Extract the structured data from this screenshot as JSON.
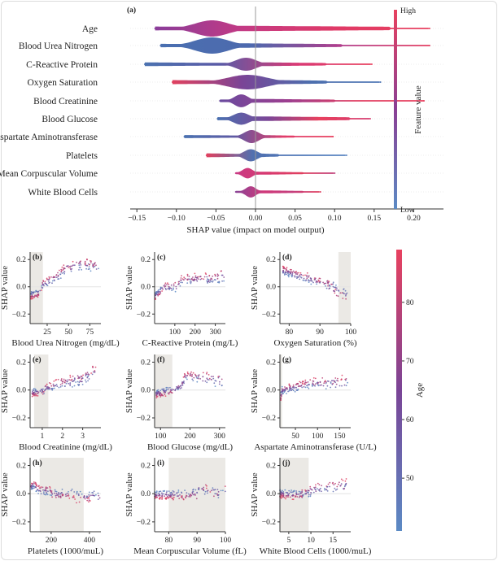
{
  "chart_data": [
    {
      "type": "violin-summary",
      "panel_label": "(a)",
      "xlabel": "SHAP value (impact on model output)",
      "xlim": [
        -0.16,
        0.235
      ],
      "xticks": [
        "−0.15",
        "−0.10",
        "−0.05",
        "0.00",
        "0.05",
        "0.10",
        "0.15",
        "0.20"
      ],
      "xtick_values": [
        -0.15,
        -0.1,
        -0.05,
        0.0,
        0.05,
        0.1,
        0.15,
        0.2
      ],
      "colorbar": {
        "label": "Feature value",
        "high": "High",
        "low": "Low",
        "high_color": "#e8415f",
        "low_color": "#5b8ac4"
      },
      "features": [
        {
          "name": "Age",
          "min": -0.127,
          "max": 0.22,
          "mode": -0.055,
          "colors": [
            "#8a3d9a",
            "#c53a83",
            "#e03a66",
            "#e8415f"
          ]
        },
        {
          "name": "Blood Urea Nitrogen",
          "min": -0.12,
          "max": 0.22,
          "mode": -0.055,
          "colors": [
            "#4a6fb0",
            "#4d6aae",
            "#b03d8c",
            "#e43f62"
          ]
        },
        {
          "name": "C-Reactive Protein",
          "min": -0.14,
          "max": 0.147,
          "mode": -0.012,
          "colors": [
            "#4c72b0",
            "#5a5aa6",
            "#d93a75",
            "#e8415f"
          ]
        },
        {
          "name": "Oxygen Saturation",
          "min": -0.105,
          "max": 0.158,
          "mode": -0.01,
          "colors": [
            "#e0415f",
            "#7a4496",
            "#4d6fae",
            "#5078b6"
          ]
        },
        {
          "name": "Blood Creatinine",
          "min": -0.045,
          "max": 0.213,
          "mode": -0.018,
          "colors": [
            "#6a4a9e",
            "#9d3f90",
            "#e03c60",
            "#e8415f"
          ]
        },
        {
          "name": "Blood Glucose",
          "min": -0.048,
          "max": 0.145,
          "mode": -0.018,
          "colors": [
            "#4a70b0",
            "#7c4697",
            "#e8415f",
            "#d53c70"
          ]
        },
        {
          "name": "Aspartate Aminotransferase",
          "min": -0.09,
          "max": 0.098,
          "mode": -0.005,
          "colors": [
            "#4b72b1",
            "#5e5aa4",
            "#e13c6a",
            "#e8415f"
          ]
        },
        {
          "name": "Platelets",
          "min": -0.062,
          "max": 0.115,
          "mode": -0.006,
          "colors": [
            "#e0415f",
            "#5070b0",
            "#4f78b8",
            "#5b86c2"
          ]
        },
        {
          "name": "Mean Corpuscular Volume",
          "min": -0.025,
          "max": 0.1,
          "mode": -0.01,
          "colors": [
            "#c93a84",
            "#d8396f",
            "#e0405f",
            "#c0407a"
          ]
        },
        {
          "name": "White Blood Cells",
          "min": -0.025,
          "max": 0.082,
          "mode": -0.006,
          "colors": [
            "#8a4496",
            "#d0397a",
            "#c43f7d",
            "#e0405f"
          ]
        }
      ]
    },
    {
      "type": "scatter-grid",
      "ylabel": "SHAP value",
      "ylim": [
        -0.27,
        0.255
      ],
      "yticks": [
        "−0.2",
        "0.0",
        "0.2"
      ],
      "ytick_values": [
        -0.2,
        0.0,
        0.2
      ],
      "colorbar": {
        "label": "Age",
        "ticks": [
          "50",
          "60",
          "70",
          "80"
        ],
        "tick_values": [
          50,
          60,
          70,
          80
        ],
        "range": [
          41,
          89
        ],
        "low_color": "#5b8ac4",
        "high_color": "#e8415f"
      },
      "shade_color": "#ebe9e5",
      "panels": [
        {
          "label": "(b)",
          "xlabel": "Blood Urea Nitrogen (mg/dL)",
          "xlim": [
            5,
            88
          ],
          "xticks": [
            25,
            50,
            75
          ],
          "shade": [
            5,
            20
          ],
          "trend": [
            [
              6,
              -0.06
            ],
            [
              15,
              -0.05
            ],
            [
              18,
              -0.02
            ],
            [
              20,
              0.02
            ],
            [
              30,
              0.05
            ],
            [
              40,
              0.09
            ],
            [
              45,
              0.13
            ],
            [
              60,
              0.16
            ],
            [
              86,
              0.16
            ]
          ]
        },
        {
          "label": "(c)",
          "xlabel": "C-Reactive Protein (mg/L)",
          "xlim": [
            0,
            350
          ],
          "xticks": [
            100,
            200,
            300
          ],
          "shade": null,
          "trend": [
            [
              2,
              -0.07
            ],
            [
              30,
              -0.03
            ],
            [
              45,
              0.0
            ],
            [
              60,
              0.0
            ],
            [
              110,
              0.0
            ],
            [
              130,
              0.05
            ],
            [
              200,
              0.06
            ],
            [
              300,
              0.06
            ],
            [
              345,
              0.09
            ]
          ]
        },
        {
          "label": "(d)",
          "xlabel": "Oxygen Saturation (%)",
          "xlim": [
            77,
            100
          ],
          "xticks": [
            80,
            90,
            100
          ],
          "shade": [
            96,
            100
          ],
          "trend": [
            [
              78,
              0.12
            ],
            [
              85,
              0.07
            ],
            [
              91,
              0.03
            ],
            [
              94,
              0.0
            ],
            [
              96,
              -0.04
            ],
            [
              99,
              -0.06
            ]
          ]
        },
        {
          "label": "(e)",
          "xlabel": "Blood Creatinine (mg/dL)",
          "xlim": [
            0.4,
            3.9
          ],
          "xticks": [
            1,
            2,
            3
          ],
          "shade": [
            0.6,
            1.3
          ],
          "trend": [
            [
              0.5,
              -0.02
            ],
            [
              1.0,
              -0.015
            ],
            [
              1.2,
              0.02
            ],
            [
              2.0,
              0.05
            ],
            [
              3.0,
              0.08
            ],
            [
              3.7,
              0.15
            ]
          ]
        },
        {
          "label": "(f)",
          "xlabel": "Blood Glucose (mg/dL)",
          "xlim": [
            80,
            320
          ],
          "xticks": [
            100,
            200,
            300
          ],
          "shade": [
            80,
            140
          ],
          "trend": [
            [
              85,
              -0.03
            ],
            [
              140,
              0.0
            ],
            [
              170,
              0.03
            ],
            [
              185,
              0.1
            ],
            [
              220,
              0.09
            ],
            [
              310,
              0.07
            ]
          ]
        },
        {
          "label": "(g)",
          "xlabel": "Aspartate Aminotransferase (U/L)",
          "xlim": [
            15,
            175
          ],
          "xticks": [
            50,
            100,
            150
          ],
          "shade": [
            15,
            20
          ],
          "trend": [
            [
              17,
              -0.05
            ],
            [
              20,
              0.0
            ],
            [
              50,
              0.02
            ],
            [
              70,
              0.04
            ],
            [
              100,
              0.05
            ],
            [
              170,
              0.06
            ]
          ]
        },
        {
          "label": "(h)",
          "xlabel": "Platelets (1000/muL)",
          "xlim": [
            90,
            460
          ],
          "xticks": [
            200,
            400
          ],
          "shade": [
            140,
            370
          ],
          "trend": [
            [
              95,
              0.05
            ],
            [
              110,
              0.07
            ],
            [
              130,
              0.03
            ],
            [
              195,
              0.02
            ],
            [
              205,
              0.0
            ],
            [
              320,
              -0.01
            ],
            [
              335,
              -0.03
            ],
            [
              455,
              -0.02
            ]
          ]
        },
        {
          "label": "(i)",
          "xlabel": "Mean Corpuscular Volume (fL)",
          "xlim": [
            75,
            100
          ],
          "xticks": [
            80,
            90,
            100
          ],
          "shade": [
            80,
            100
          ],
          "trend": [
            [
              75,
              -0.01
            ],
            [
              90,
              -0.005
            ],
            [
              90.5,
              0.03
            ],
            [
              93,
              0.03
            ],
            [
              94,
              0.01
            ],
            [
              97,
              -0.01
            ],
            [
              100,
              0.05
            ]
          ]
        },
        {
          "label": "(j)",
          "xlabel": "White Blood Cells (1000/muL)",
          "xlim": [
            3,
            19
          ],
          "xticks": [
            5,
            10,
            15
          ],
          "shade": [
            3,
            9.5
          ],
          "trend": [
            [
              3,
              0.0
            ],
            [
              6,
              -0.01
            ],
            [
              8,
              0.0
            ],
            [
              10,
              0.02
            ],
            [
              12,
              0.04
            ],
            [
              15,
              0.05
            ],
            [
              18,
              0.06
            ]
          ]
        }
      ]
    }
  ]
}
